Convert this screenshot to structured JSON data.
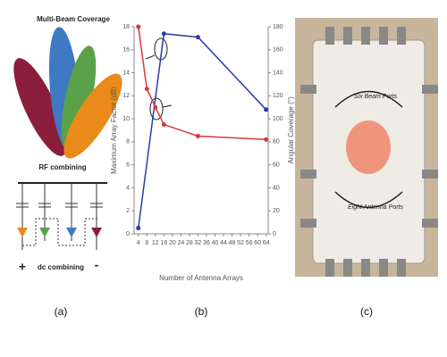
{
  "panel_a": {
    "title": "Multi-Beam Coverage",
    "rf": "RF combining",
    "dc": "dc combining",
    "plus": "+",
    "minus": "-",
    "caption": "(a)"
  },
  "chart_data": {
    "type": "line",
    "caption": "(b)",
    "xlabel": "Number of Antenna Arrays",
    "ylabel": "Maximum Array Factor (dB)",
    "y2label": "Angular Coverage (°)",
    "xlim": [
      2,
      65
    ],
    "xticks": [
      4,
      8,
      12,
      16,
      20,
      24,
      28,
      32,
      36,
      40,
      44,
      48,
      52,
      56,
      60,
      64
    ],
    "ylim": [
      0,
      18
    ],
    "yticks": [
      0,
      2,
      4,
      6,
      8,
      10,
      12,
      14,
      16,
      18
    ],
    "y2lim": [
      0,
      180
    ],
    "y2ticks": [
      0,
      20,
      40,
      60,
      80,
      100,
      120,
      140,
      160,
      180
    ],
    "grid": false,
    "series": [
      {
        "name": "Maximum Array Factor",
        "color": "#2b3aa8",
        "axis": "y",
        "x": [
          4,
          16,
          32,
          64
        ],
        "values": [
          0.5,
          17.4,
          17.1,
          10.8
        ]
      },
      {
        "name": "Angular Coverage",
        "color": "#d63a3a",
        "axis": "y2",
        "x": [
          4,
          8,
          12,
          16,
          32,
          64
        ],
        "values": [
          180,
          126,
          110,
          95,
          85,
          82
        ]
      }
    ]
  },
  "panel_c": {
    "top": "Six Beam Ports",
    "bottom": "Eight Antenna Ports",
    "caption": "(c)"
  }
}
